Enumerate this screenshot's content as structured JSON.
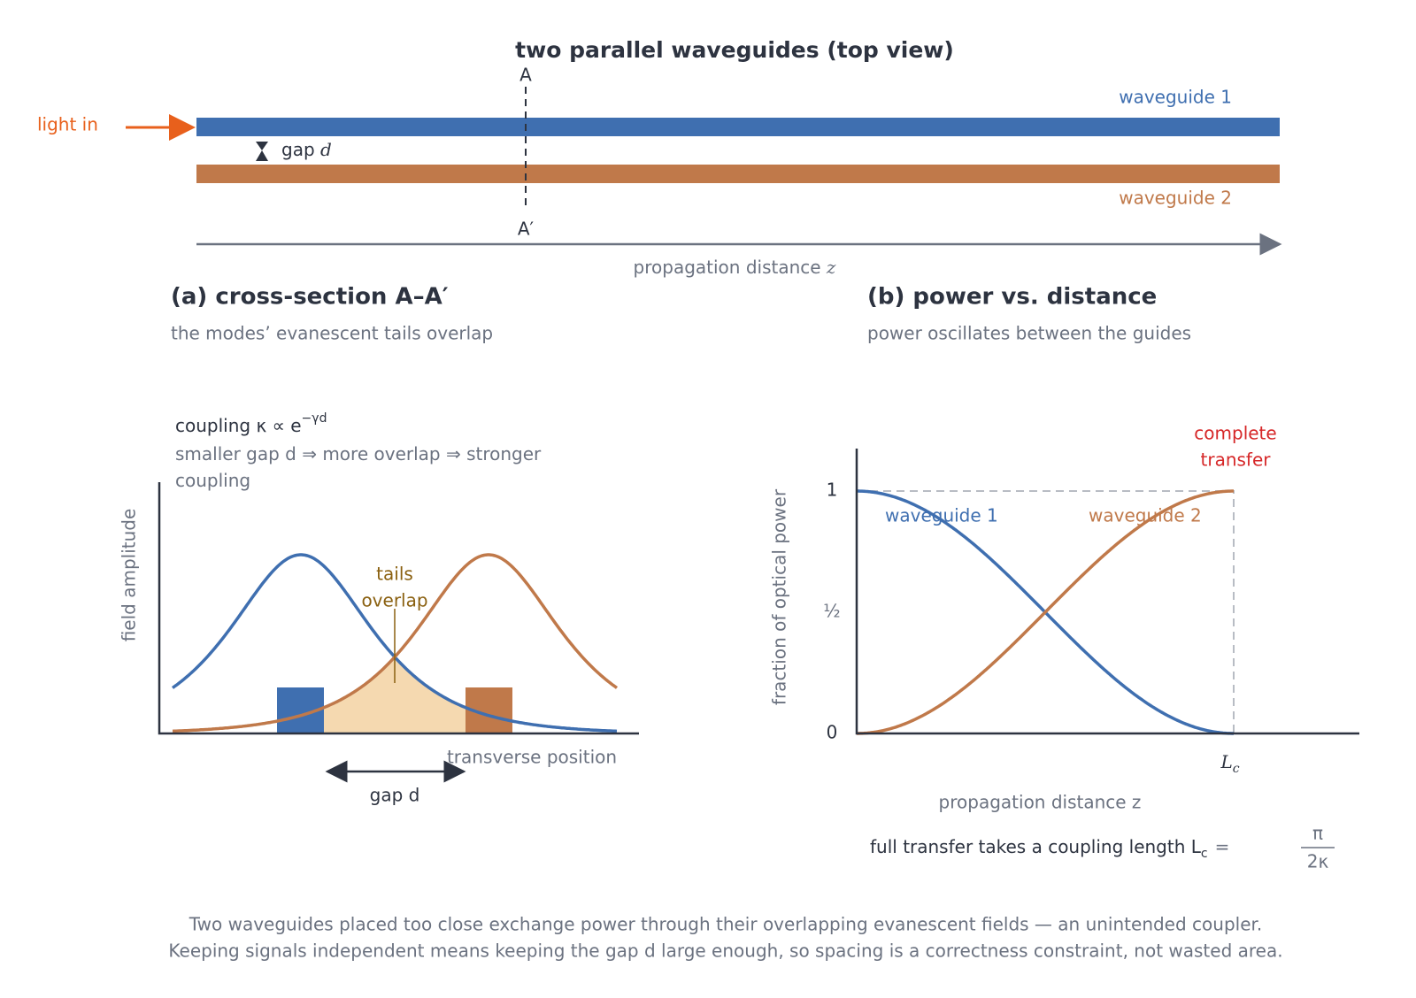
{
  "top": {
    "title": "two parallel waveguides (top view)",
    "section_top": "A",
    "section_bottom": "A′",
    "light_in": "light in",
    "gap_label": "gap",
    "gap_symbol": "d",
    "waveguide_1": "waveguide 1",
    "waveguide_2": "waveguide 2",
    "axis_label": "propagation distance",
    "axis_symbol": "z"
  },
  "panel_a": {
    "title": "(a) cross-section A–A′",
    "subtitle": "the modes’ evanescent tails overlap",
    "coupling_text": "coupling κ ∝ e",
    "coupling_exponent": "−γd",
    "note": "smaller gap d ⇒ more overlap ⇒ stronger coupling",
    "y_label": "field amplitude",
    "overlap_label_1": "tails",
    "overlap_label_2": "overlap",
    "x_label": "transverse position",
    "gap_label": "gap d"
  },
  "panel_b": {
    "title": "(b) power vs. distance",
    "subtitle": "power oscillates between the guides",
    "y_label": "fraction of optical power",
    "tick_one": "1",
    "tick_half": "½",
    "tick_zero": "0",
    "tick_lc_main": "L",
    "tick_lc_sub": "c",
    "curve_1": "waveguide 1",
    "curve_2": "waveguide 2",
    "transfer_1": "complete",
    "transfer_2": "transfer",
    "x_label": "propagation distance z",
    "note_text": "full transfer takes a coupling length L",
    "note_sub": "c",
    "note_eq": "=",
    "note_num": "π",
    "note_den": "2κ"
  },
  "caption": {
    "line_1": "Two waveguides placed too close exchange power through their overlapping evanescent fields — an unintended coupler.",
    "line_2": "Keeping signals independent means keeping the gap d large enough, so spacing is a correctness constraint, not wasted area."
  }
}
